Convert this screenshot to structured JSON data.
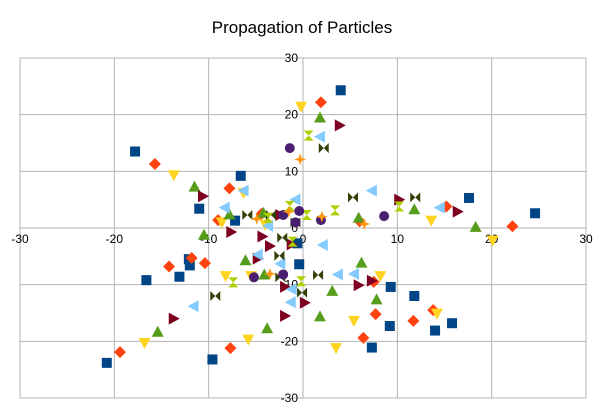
{
  "chart_data": {
    "type": "scatter",
    "title": "Propagation of Particles",
    "xlim": [
      -30,
      30
    ],
    "ylim": [
      -30,
      30
    ],
    "x_ticks": [
      -30,
      -20,
      -10,
      0,
      10,
      20,
      30
    ],
    "y_ticks": [
      -30,
      -20,
      -10,
      0,
      10,
      20,
      30
    ],
    "x_tick_labels": [
      "-30",
      "-20",
      "-10",
      "0",
      "10",
      "20",
      "30"
    ],
    "y_tick_labels": [
      "-30",
      "-20",
      "-10",
      "0",
      "10",
      "20",
      "30"
    ],
    "grid": true,
    "legend": "none",
    "series": [
      {
        "marker": "square",
        "color": "#004586",
        "points": [
          [
            4,
            24.3
          ],
          [
            -17.8,
            13.5
          ],
          [
            -6.6,
            9.2
          ],
          [
            -11,
            3.4
          ],
          [
            -7.2,
            1.3
          ],
          [
            -12.1,
            -5.5
          ],
          [
            -12,
            -6.6
          ],
          [
            -16.6,
            -9.2
          ],
          [
            -13.1,
            -8.6
          ],
          [
            -20.8,
            -23.8
          ],
          [
            -9.6,
            -23.2
          ],
          [
            -0.6,
            -2.7
          ],
          [
            -0.4,
            -6.4
          ],
          [
            9.3,
            -10.4
          ],
          [
            11.8,
            -12
          ],
          [
            14,
            -18.1
          ],
          [
            15.8,
            -16.8
          ],
          [
            9.2,
            -17.3
          ],
          [
            7.3,
            -21.1
          ],
          [
            17.6,
            5.3
          ],
          [
            24.6,
            2.6
          ]
        ]
      },
      {
        "marker": "diamond",
        "color": "#ff420e",
        "points": [
          [
            1.9,
            22.2
          ],
          [
            -15.7,
            11.3
          ],
          [
            -7.8,
            7
          ],
          [
            -9,
            1.4
          ],
          [
            -4.4,
            2.5
          ],
          [
            -11.8,
            -5.3
          ],
          [
            -10.4,
            -6.2
          ],
          [
            -14.2,
            -6.8
          ],
          [
            -19.4,
            -21.9
          ],
          [
            -7.7,
            -21.2
          ],
          [
            6.4,
            -19.4
          ],
          [
            7.7,
            -15.2
          ],
          [
            7.5,
            -9.5
          ],
          [
            11.7,
            -16.4
          ],
          [
            13.8,
            -14.5
          ],
          [
            15.2,
            3.8
          ],
          [
            22.2,
            0.3
          ],
          [
            6,
            1.2
          ]
        ]
      },
      {
        "marker": "triangle-down",
        "color": "#ffd320",
        "points": [
          [
            -0.2,
            21.4
          ],
          [
            -13.7,
            9.3
          ],
          [
            -6.3,
            6.2
          ],
          [
            -8.6,
            1
          ],
          [
            -4,
            0.6
          ],
          [
            -8.2,
            -8.5
          ],
          [
            -5.5,
            -8.5
          ],
          [
            -16.8,
            -20.3
          ],
          [
            -5.8,
            -19.7
          ],
          [
            5.4,
            -16.4
          ],
          [
            3.5,
            -21.2
          ],
          [
            8.2,
            -8.5
          ],
          [
            14.2,
            -15.1
          ],
          [
            13.6,
            1.3
          ],
          [
            20.1,
            -2.2
          ]
        ]
      },
      {
        "marker": "triangle-up",
        "color": "#579d1c",
        "points": [
          [
            1.8,
            19.5
          ],
          [
            -11.5,
            7.3
          ],
          [
            -4.2,
            2.7
          ],
          [
            -10.5,
            -1.2
          ],
          [
            -7.8,
            2.4
          ],
          [
            -6.1,
            -5.7
          ],
          [
            -4.1,
            -8.2
          ],
          [
            -15.4,
            -18.3
          ],
          [
            -3.8,
            -17.7
          ],
          [
            1.8,
            -15.6
          ],
          [
            3.1,
            -11.1
          ],
          [
            6.2,
            -6.1
          ],
          [
            7.8,
            -12.6
          ],
          [
            11.8,
            3.3
          ],
          [
            18.3,
            0.2
          ],
          [
            5.9,
            1.8
          ]
        ]
      },
      {
        "marker": "triangle-right",
        "color": "#7e0021",
        "points": [
          [
            3.9,
            18.1
          ],
          [
            -10.6,
            5.6
          ],
          [
            -2.4,
            2.3
          ],
          [
            -7.6,
            -0.7
          ],
          [
            -4.3,
            -1.5
          ],
          [
            -1.2,
            -2.9
          ],
          [
            -4.8,
            -5.4
          ],
          [
            -13.7,
            -16
          ],
          [
            -1.9,
            -15.5
          ],
          [
            0.2,
            -13.2
          ],
          [
            5.9,
            -10.1
          ],
          [
            7.3,
            -9.3
          ],
          [
            10.2,
            5
          ],
          [
            16.4,
            2.9
          ],
          [
            -3.5,
            -3.2
          ],
          [
            -1.9,
            -10.4
          ]
        ]
      },
      {
        "marker": "triangle-left",
        "color": "#83caff",
        "points": [
          [
            1.8,
            16.1
          ],
          [
            -6.3,
            6.6
          ],
          [
            -0.8,
            5
          ],
          [
            -8.3,
            3.6
          ],
          [
            -3.7,
            0.4
          ],
          [
            -4.8,
            -4.7
          ],
          [
            -2.4,
            -6.3
          ],
          [
            -11.6,
            -13.8
          ],
          [
            -1.2,
            -10.8
          ],
          [
            -1.3,
            -13.1
          ],
          [
            3.7,
            -8.2
          ],
          [
            5.4,
            -8.1
          ],
          [
            7.3,
            6.6
          ],
          [
            14.5,
            3.6
          ],
          [
            2.1,
            -3
          ]
        ]
      },
      {
        "marker": "bowtie",
        "color": "#314004",
        "points": [
          [
            2.2,
            14.1
          ],
          [
            -5.9,
            2.3
          ],
          [
            -3.4,
            2.3
          ],
          [
            -2.2,
            -1.7
          ],
          [
            -0.8,
            1
          ],
          [
            -2.5,
            -4.9
          ],
          [
            -2.4,
            -8.7
          ],
          [
            -9.3,
            -12
          ],
          [
            -0.1,
            -11.4
          ],
          [
            1.6,
            -8.3
          ],
          [
            5.3,
            5.4
          ],
          [
            11.9,
            5.4
          ]
        ]
      },
      {
        "marker": "hourglass",
        "color": "#aecf00",
        "points": [
          [
            0.6,
            16.3
          ],
          [
            -1.4,
            3.9
          ],
          [
            -3.7,
            1.8
          ],
          [
            -1.1,
            -2.4
          ],
          [
            -0.2,
            -9.4
          ],
          [
            -7.4,
            -9.6
          ],
          [
            3.4,
            3.1
          ],
          [
            10.2,
            3.8
          ],
          [
            0.4,
            2.3
          ]
        ]
      },
      {
        "marker": "circle",
        "color": "#4b1f6f",
        "points": [
          [
            -1.4,
            14.1
          ],
          [
            -2.1,
            2.3
          ],
          [
            -0.4,
            3
          ],
          [
            1.9,
            1.4
          ],
          [
            -5.2,
            -8.7
          ],
          [
            -2.1,
            -8.2
          ],
          [
            8.6,
            2.1
          ],
          [
            -0.8,
            1
          ]
        ]
      },
      {
        "marker": "star4",
        "color": "#ff950e",
        "points": [
          [
            -0.3,
            12.1
          ],
          [
            -4.9,
            1.6
          ],
          [
            -1.5,
            2.9
          ],
          [
            -3.5,
            -8.1
          ],
          [
            6.5,
            0.7
          ],
          [
            2,
            2
          ]
        ]
      }
    ]
  }
}
